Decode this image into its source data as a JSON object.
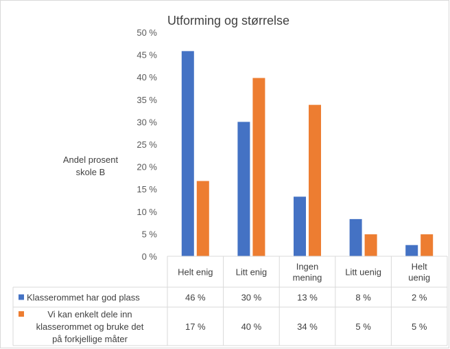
{
  "chart_data": {
    "type": "bar",
    "title": "Utforming og størrelse",
    "ylabel_lines": [
      "Andel prosent",
      "skole B"
    ],
    "ylim": [
      0,
      50
    ],
    "yticks": [
      "0 %",
      "5 %",
      "10 %",
      "15 %",
      "20 %",
      "25 %",
      "30 %",
      "35 %",
      "40 %",
      "45 %",
      "50 %"
    ],
    "categories": [
      [
        "Helt enig"
      ],
      [
        "Litt enig"
      ],
      [
        "Ingen",
        "mening"
      ],
      [
        "Litt uenig"
      ],
      [
        "Helt",
        "uenig"
      ]
    ],
    "series": [
      {
        "name_lines": [
          "Klasserommet har god plass"
        ],
        "color": "#4472C4",
        "values": [
          45.8,
          30.0,
          13.3,
          8.3,
          2.5
        ],
        "labels": [
          "46 %",
          "30 %",
          "13 %",
          "8 %",
          "2 %"
        ]
      },
      {
        "name_lines": [
          "Vi kan enkelt dele inn",
          "klasserommet og bruke det",
          "på forkjellige måter"
        ],
        "color": "#ED7D31",
        "values": [
          16.8,
          39.8,
          33.8,
          4.9,
          4.9
        ],
        "labels": [
          "17 %",
          "40 %",
          "34 %",
          "5 %",
          "5 %"
        ]
      }
    ],
    "grid": false,
    "legend": "data table"
  }
}
